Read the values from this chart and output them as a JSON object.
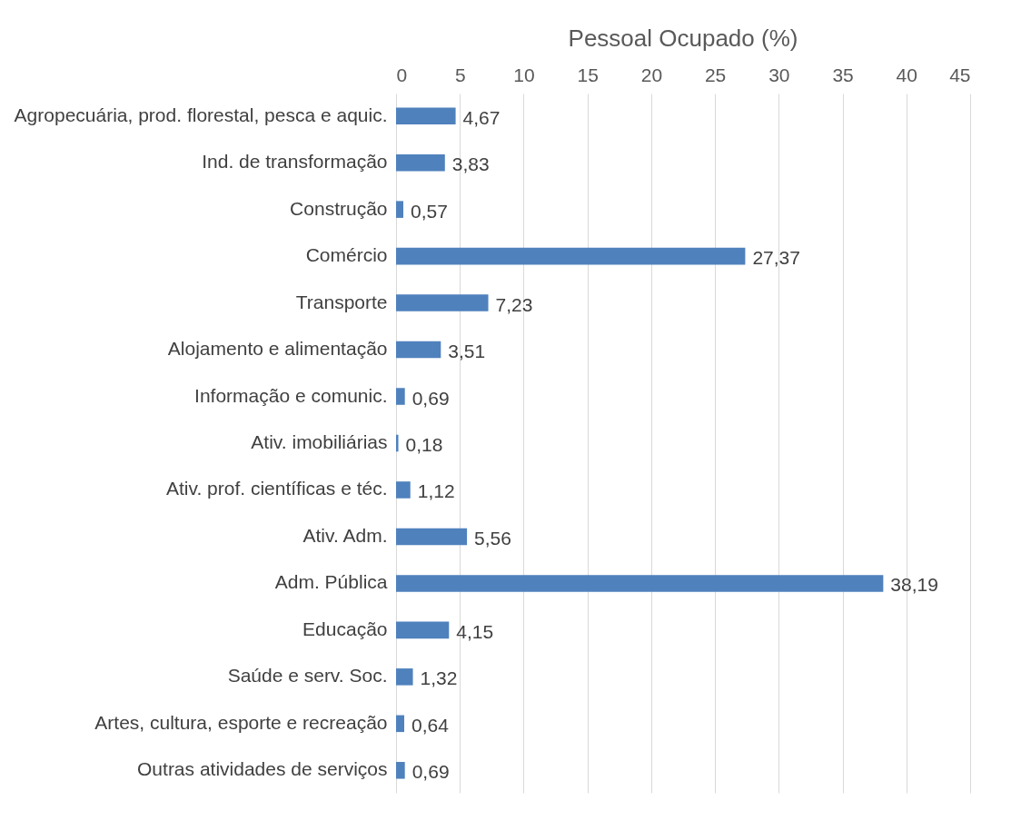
{
  "chart_data": {
    "type": "bar",
    "orientation": "horizontal",
    "title": "Pessoal Ocupado (%)",
    "categories": [
      "Agropecuária, prod. florestal, pesca e aquic.",
      "Ind. de transformação",
      "Construção",
      "Comércio",
      "Transporte",
      "Alojamento e alimentação",
      "Informação e comunic.",
      "Ativ. imobiliárias",
      "Ativ. prof. científicas e téc.",
      "Ativ. Adm.",
      "Adm. Pública",
      "Educação",
      "Saúde e serv. Soc.",
      "Artes, cultura, esporte e recreação",
      "Outras atividades de serviços"
    ],
    "values": [
      4.67,
      3.83,
      0.57,
      27.37,
      7.23,
      3.51,
      0.69,
      0.18,
      1.12,
      5.56,
      38.19,
      4.15,
      1.32,
      0.64,
      0.69
    ],
    "value_labels": [
      "4,67",
      "3,83",
      "0,57",
      "27,37",
      "7,23",
      "3,51",
      "0,69",
      "0,18",
      "1,12",
      "5,56",
      "38,19",
      "4,15",
      "1,32",
      "0,64",
      "0,69"
    ],
    "color": "#4f81bd",
    "xlim": [
      0,
      45
    ],
    "xticks": [
      0,
      5,
      10,
      15,
      20,
      25,
      30,
      35,
      40,
      45
    ],
    "grid": "x"
  }
}
